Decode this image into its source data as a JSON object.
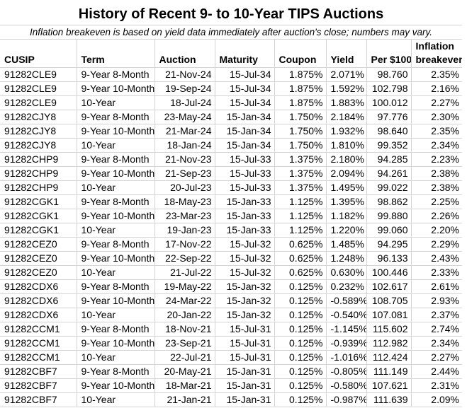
{
  "title": "History of Recent 9- to 10-Year TIPS Auctions",
  "subtitle": "Inflation breakeven is based on yield data immediately after auction's close; numbers may vary.",
  "columns": [
    "CUSIP",
    "Term",
    "Auction",
    "Maturity",
    "Coupon",
    "Yield",
    "Per $100",
    "Inflation breakeven"
  ],
  "rows": [
    [
      "91282CLE9",
      "9-Year 8-Month",
      "21-Nov-24",
      "15-Jul-34",
      "1.875%",
      "2.071%",
      "98.760",
      "2.35%"
    ],
    [
      "91282CLE9",
      "9-Year 10-Month",
      "19-Sep-24",
      "15-Jul-34",
      "1.875%",
      "1.592%",
      "102.798",
      "2.16%"
    ],
    [
      "91282CLE9",
      "10-Year",
      "18-Jul-24",
      "15-Jul-34",
      "1.875%",
      "1.883%",
      "100.012",
      "2.27%"
    ],
    [
      "91282CJY8",
      "9-Year 8-Month",
      "23-May-24",
      "15-Jan-34",
      "1.750%",
      "2.184%",
      "97.776",
      "2.30%"
    ],
    [
      "91282CJY8",
      "9-Year 10-Month",
      "21-Mar-24",
      "15-Jan-34",
      "1.750%",
      "1.932%",
      "98.640",
      "2.35%"
    ],
    [
      "91282CJY8",
      "10-Year",
      "18-Jan-24",
      "15-Jan-34",
      "1.750%",
      "1.810%",
      "99.352",
      "2.34%"
    ],
    [
      "91282CHP9",
      "9-Year 8-Month",
      "21-Nov-23",
      "15-Jul-33",
      "1.375%",
      "2.180%",
      "94.285",
      "2.23%"
    ],
    [
      "91282CHP9",
      "9-Year 10-Month",
      "21-Sep-23",
      "15-Jul-33",
      "1.375%",
      "2.094%",
      "94.261",
      "2.38%"
    ],
    [
      "91282CHP9",
      "10-Year",
      "20-Jul-23",
      "15-Jul-33",
      "1.375%",
      "1.495%",
      "99.022",
      "2.38%"
    ],
    [
      "91282CGK1",
      "9-Year 8-Month",
      "18-May-23",
      "15-Jan-33",
      "1.125%",
      "1.395%",
      "98.862",
      "2.25%"
    ],
    [
      "91282CGK1",
      "9-Year 10-Month",
      "23-Mar-23",
      "15-Jan-33",
      "1.125%",
      "1.182%",
      "99.880",
      "2.26%"
    ],
    [
      "91282CGK1",
      "10-Year",
      "19-Jan-23",
      "15-Jan-33",
      "1.125%",
      "1.220%",
      "99.060",
      "2.20%"
    ],
    [
      "91282CEZ0",
      "9-Year 8-Month",
      "17-Nov-22",
      "15-Jul-32",
      "0.625%",
      "1.485%",
      "94.295",
      "2.29%"
    ],
    [
      "91282CEZ0",
      "9-Year 10-Month",
      "22-Sep-22",
      "15-Jul-32",
      "0.625%",
      "1.248%",
      "96.133",
      "2.43%"
    ],
    [
      "91282CEZ0",
      "10-Year",
      "21-Jul-22",
      "15-Jul-32",
      "0.625%",
      "0.630%",
      "100.446",
      "2.33%"
    ],
    [
      "91282CDX6",
      "9-Year 8-Month",
      "19-May-22",
      "15-Jan-32",
      "0.125%",
      "0.232%",
      "102.617",
      "2.61%"
    ],
    [
      "91282CDX6",
      "9-Year 10-Month",
      "24-Mar-22",
      "15-Jan-32",
      "0.125%",
      "-0.589%",
      "108.705",
      "2.93%"
    ],
    [
      "91282CDX6",
      "10-Year",
      "20-Jan-22",
      "15-Jan-32",
      "0.125%",
      "-0.540%",
      "107.081",
      "2.37%"
    ],
    [
      "91282CCM1",
      "9-Year 8-Month",
      "18-Nov-21",
      "15-Jul-31",
      "0.125%",
      "-1.145%",
      "115.602",
      "2.74%"
    ],
    [
      "91282CCM1",
      "9-Year 10-Month",
      "23-Sep-21",
      "15-Jul-31",
      "0.125%",
      "-0.939%",
      "112.982",
      "2.34%"
    ],
    [
      "91282CCM1",
      "10-Year",
      "22-Jul-21",
      "15-Jul-31",
      "0.125%",
      "-1.016%",
      "112.424",
      "2.27%"
    ],
    [
      "91282CBF7",
      "9-Year 8-Month",
      "20-May-21",
      "15-Jan-31",
      "0.125%",
      "-0.805%",
      "111.149",
      "2.44%"
    ],
    [
      "91282CBF7",
      "9-Year 10-Month",
      "18-Mar-21",
      "15-Jan-31",
      "0.125%",
      "-0.580%",
      "107.621",
      "2.31%"
    ],
    [
      "91282CBF7",
      "10-Year",
      "21-Jan-21",
      "15-Jan-31",
      "0.125%",
      "-0.987%",
      "111.639",
      "2.09%"
    ]
  ]
}
